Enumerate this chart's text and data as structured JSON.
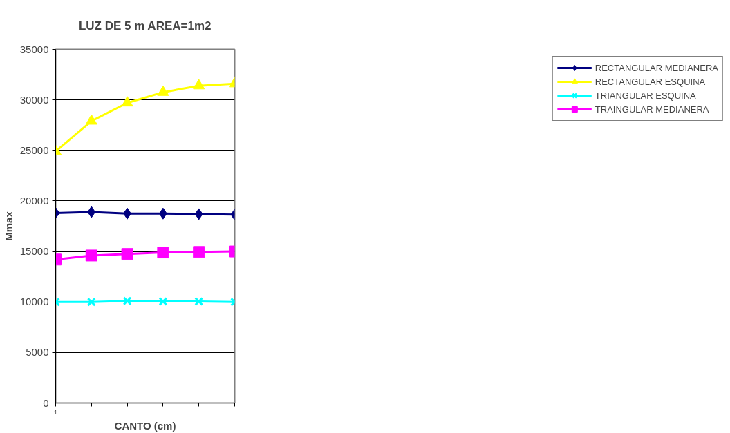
{
  "chart_data": {
    "type": "line",
    "title": "LUZ DE 5 m AREA=1m2",
    "xlabel": "CANTO (cm)",
    "ylabel": "Mmax",
    "categories": [
      "1",
      null,
      null,
      null,
      null,
      null
    ],
    "ylim": [
      0,
      35000
    ],
    "yticks": [
      0,
      5000,
      10000,
      15000,
      20000,
      25000,
      30000,
      35000
    ],
    "grid": "y",
    "legend": "right",
    "series": [
      {
        "name": "RECTANGULAR MEDIANERA",
        "color": "#000080",
        "marker": "diamond",
        "values": [
          18800,
          18900,
          18750,
          18750,
          18700,
          18650
        ]
      },
      {
        "name": "RECTANGULAR ESQUINA",
        "color": "#ffff00",
        "marker": "triangle",
        "values": [
          24900,
          27900,
          29700,
          30750,
          31400,
          31600
        ]
      },
      {
        "name": "TRIANGULAR ESQUINA",
        "color": "#00ffff",
        "marker": "cross",
        "values": [
          10000,
          10000,
          10100,
          10050,
          10050,
          10000
        ]
      },
      {
        "name": "TRAINGULAR MEDIANERA",
        "color": "#ff00ff",
        "marker": "square",
        "values": [
          14200,
          14600,
          14750,
          14900,
          14950,
          15000
        ]
      }
    ]
  }
}
